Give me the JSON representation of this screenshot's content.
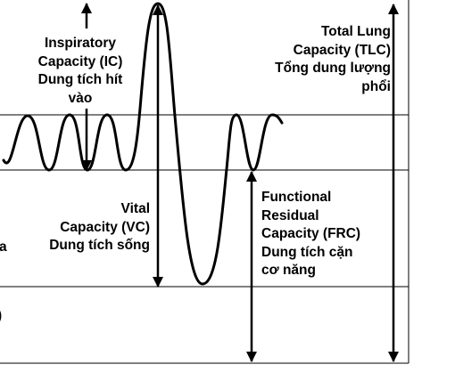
{
  "labels": {
    "ic": [
      "Inspiratory",
      "Capacity (IC)",
      "Dung tích hít",
      "vào"
    ],
    "tlc": [
      "Total Lung",
      "Capacity (TLC)",
      "Tổng dung lượng",
      "phổi"
    ],
    "vc": [
      "Vital",
      "Capacity (VC)",
      "Dung tích sống"
    ],
    "frc": [
      "Functional",
      "Residual",
      "Capacity (FRC)",
      "Dung tích cặn",
      "cơ năng"
    ],
    "cut_left_1": "a",
    "cut_left_2": ")"
  }
}
